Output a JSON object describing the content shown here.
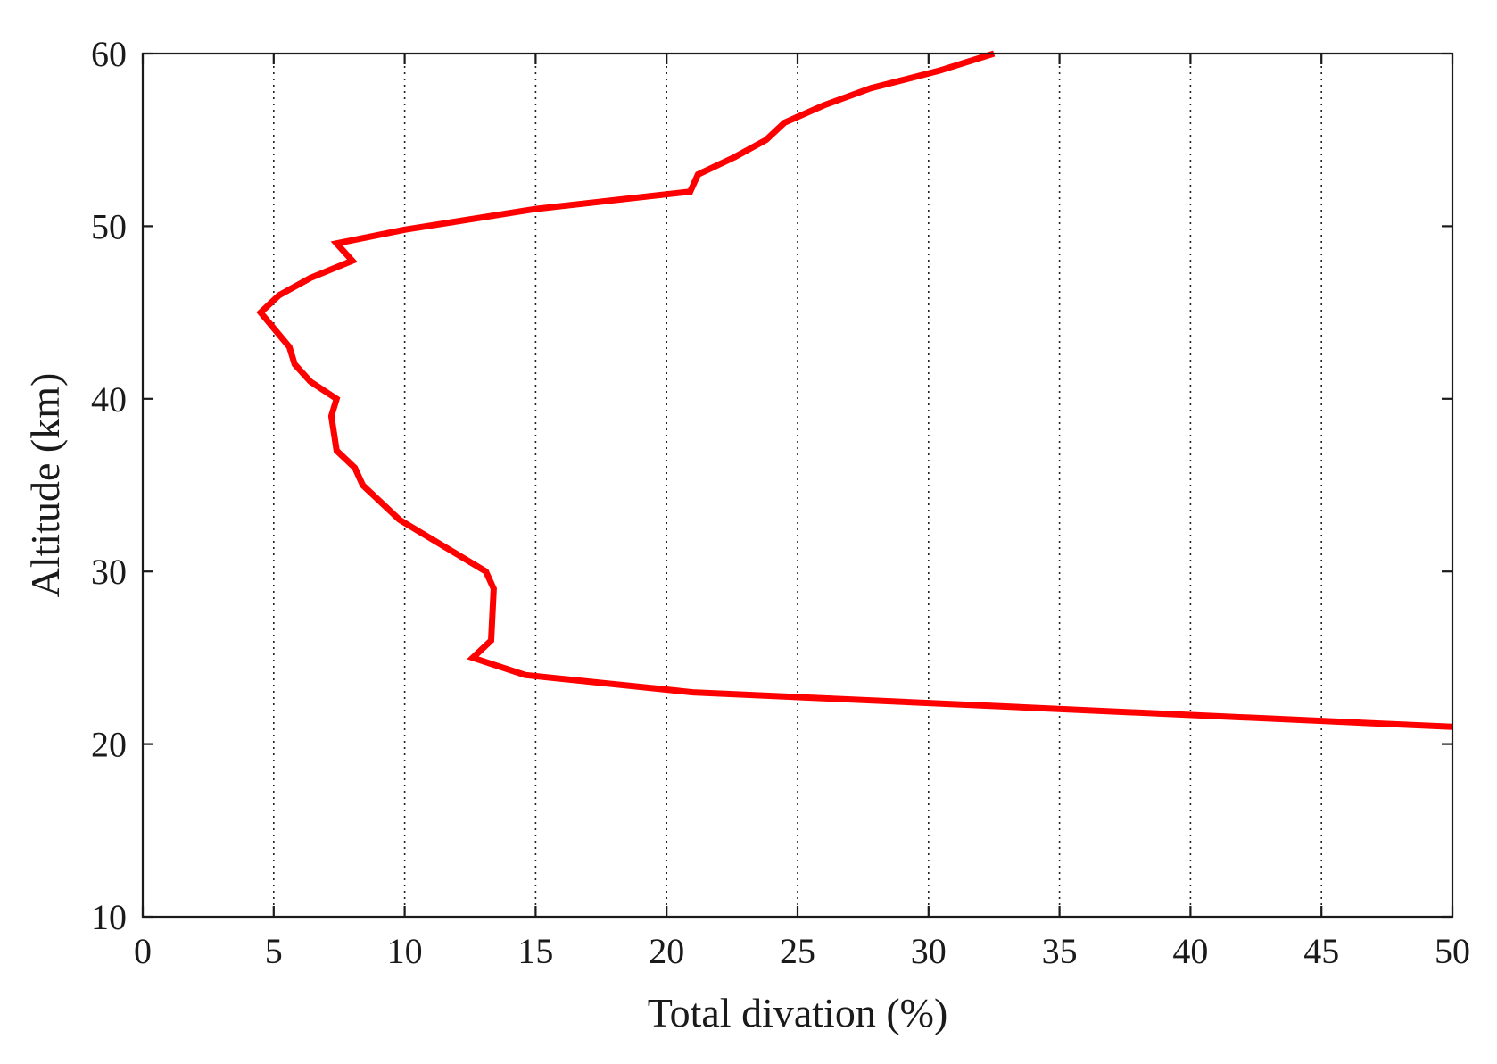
{
  "chart_data": {
    "type": "line",
    "title": "",
    "xlabel": "Total divation (%)",
    "ylabel": "Altitude (km)",
    "xlim": [
      0,
      50
    ],
    "ylim": [
      10,
      60
    ],
    "xticks": [
      0,
      5,
      10,
      15,
      20,
      25,
      30,
      35,
      40,
      45,
      50
    ],
    "yticks": [
      10,
      20,
      30,
      40,
      50,
      60
    ],
    "xtick_labels": [
      "0",
      "5",
      "10",
      "15",
      "20",
      "25",
      "30",
      "35",
      "40",
      "45",
      "50"
    ],
    "ytick_labels": [
      "10",
      "20",
      "30",
      "40",
      "50",
      "60"
    ],
    "grid": "vertical-dotted",
    "legend": "none",
    "series": [
      {
        "color": "#ff0000",
        "points": [
          {
            "x": 50.0,
            "y": 21
          },
          {
            "x": 21.0,
            "y": 23
          },
          {
            "x": 14.6,
            "y": 24
          },
          {
            "x": 12.6,
            "y": 25
          },
          {
            "x": 13.3,
            "y": 26
          },
          {
            "x": 13.4,
            "y": 29
          },
          {
            "x": 13.1,
            "y": 30
          },
          {
            "x": 12.0,
            "y": 31
          },
          {
            "x": 9.8,
            "y": 33
          },
          {
            "x": 8.4,
            "y": 35
          },
          {
            "x": 8.1,
            "y": 36
          },
          {
            "x": 7.4,
            "y": 37
          },
          {
            "x": 7.2,
            "y": 39
          },
          {
            "x": 7.4,
            "y": 40
          },
          {
            "x": 6.4,
            "y": 41
          },
          {
            "x": 5.8,
            "y": 42
          },
          {
            "x": 5.6,
            "y": 43
          },
          {
            "x": 4.5,
            "y": 45
          },
          {
            "x": 5.2,
            "y": 46
          },
          {
            "x": 6.4,
            "y": 47
          },
          {
            "x": 8.0,
            "y": 48
          },
          {
            "x": 7.4,
            "y": 49
          },
          {
            "x": 10.0,
            "y": 49.8
          },
          {
            "x": 15.0,
            "y": 51
          },
          {
            "x": 20.9,
            "y": 52
          },
          {
            "x": 21.2,
            "y": 53
          },
          {
            "x": 22.6,
            "y": 54
          },
          {
            "x": 23.8,
            "y": 55
          },
          {
            "x": 24.5,
            "y": 56
          },
          {
            "x": 26.0,
            "y": 57
          },
          {
            "x": 27.8,
            "y": 58
          },
          {
            "x": 30.4,
            "y": 59
          },
          {
            "x": 32.5,
            "y": 60
          }
        ]
      }
    ]
  }
}
